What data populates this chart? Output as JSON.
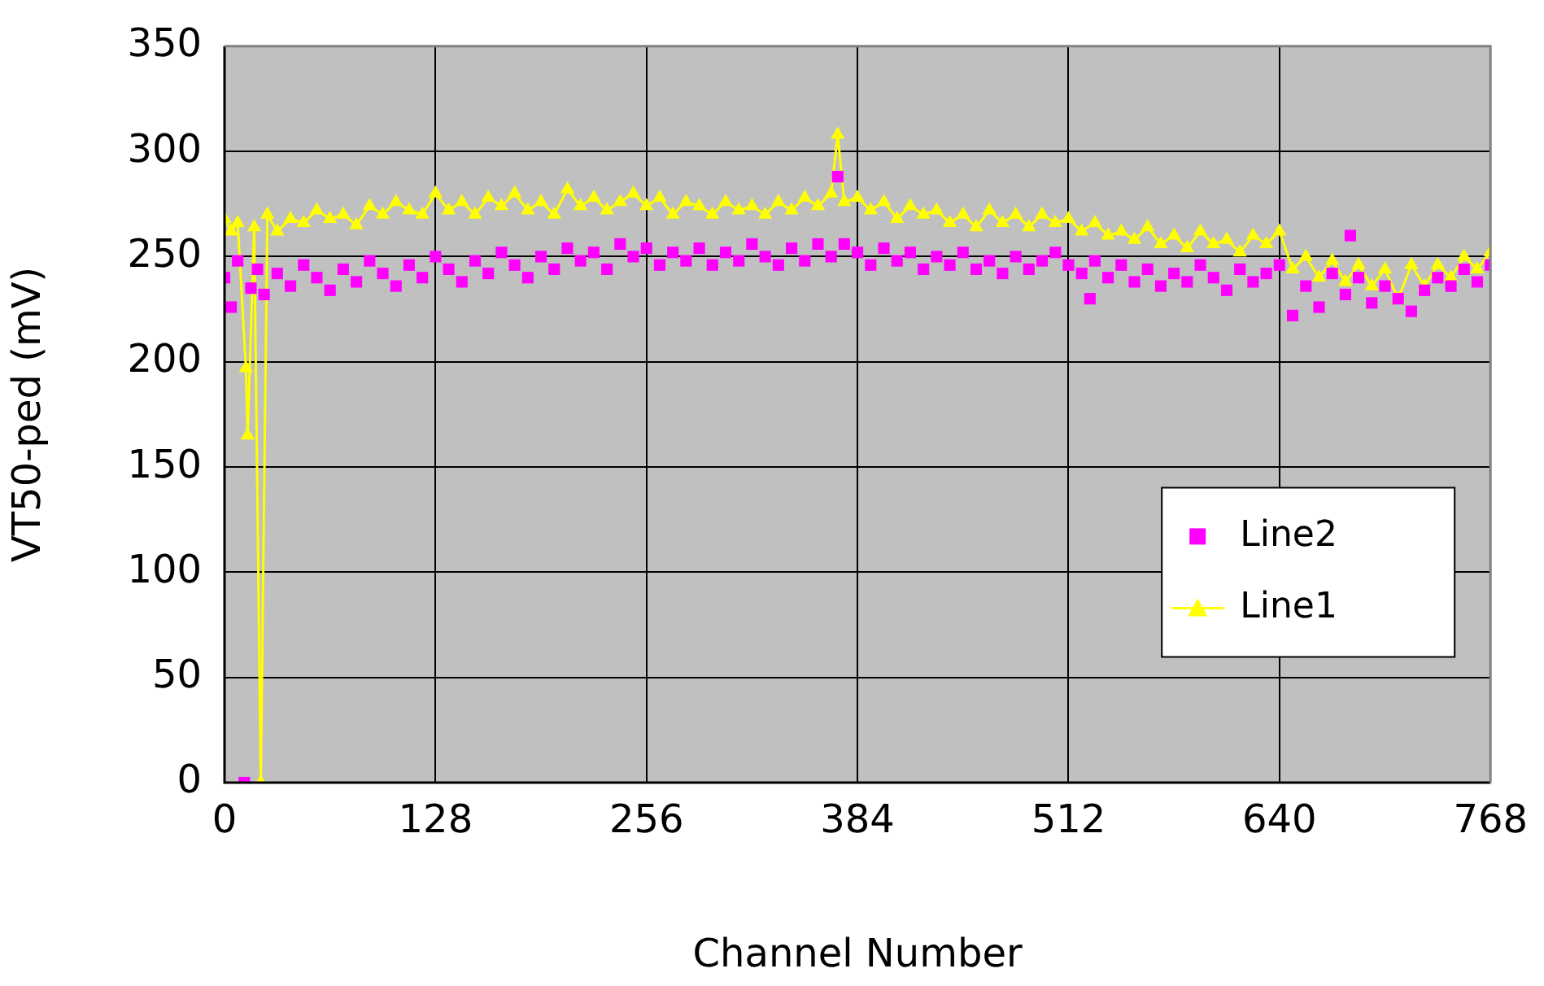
{
  "chart_data": {
    "type": "scatter",
    "xlabel": "Channel Number",
    "ylabel": "VT50-ped (mV)",
    "xlim": [
      0,
      768
    ],
    "xticks": [
      0,
      128,
      256,
      384,
      512,
      640,
      768
    ],
    "ylim": [
      0,
      350
    ],
    "yticks": [
      0,
      50,
      100,
      150,
      200,
      250,
      300,
      350
    ],
    "grid": true,
    "legend": "right",
    "series": [
      {
        "name": "Line2",
        "type": "scatter",
        "marker": "square",
        "color": "#ff00ff",
        "x": [
          0,
          4,
          8,
          12,
          16,
          20,
          24,
          32,
          40,
          48,
          56,
          64,
          72,
          80,
          88,
          96,
          104,
          112,
          120,
          128,
          136,
          144,
          152,
          160,
          168,
          176,
          184,
          192,
          200,
          208,
          216,
          224,
          232,
          240,
          248,
          256,
          264,
          272,
          280,
          288,
          296,
          304,
          312,
          320,
          328,
          336,
          344,
          352,
          360,
          368,
          372,
          376,
          384,
          392,
          400,
          408,
          416,
          424,
          432,
          440,
          448,
          456,
          464,
          472,
          480,
          488,
          496,
          504,
          512,
          520,
          525,
          528,
          536,
          544,
          552,
          560,
          568,
          576,
          584,
          592,
          600,
          608,
          616,
          624,
          632,
          640,
          648,
          656,
          664,
          672,
          680,
          683,
          688,
          696,
          704,
          712,
          720,
          728,
          736,
          744,
          752,
          760,
          768
        ],
        "values": [
          240,
          226,
          248,
          0,
          235,
          244,
          232,
          242,
          236,
          246,
          240,
          234,
          244,
          238,
          248,
          242,
          236,
          246,
          240,
          250,
          244,
          238,
          248,
          242,
          252,
          246,
          240,
          250,
          244,
          254,
          248,
          252,
          244,
          256,
          250,
          254,
          246,
          252,
          248,
          254,
          246,
          252,
          248,
          256,
          250,
          246,
          254,
          248,
          256,
          250,
          288,
          256,
          252,
          246,
          254,
          248,
          252,
          244,
          250,
          246,
          252,
          244,
          248,
          242,
          250,
          244,
          248,
          252,
          246,
          242,
          230,
          248,
          240,
          246,
          238,
          244,
          236,
          242,
          238,
          246,
          240,
          234,
          244,
          238,
          242,
          246,
          222,
          236,
          226,
          242,
          232,
          260,
          240,
          228,
          236,
          230,
          224,
          234,
          240,
          236,
          244,
          238,
          246
        ]
      },
      {
        "name": "Line1",
        "type": "line",
        "marker": "triangle",
        "color": "#ffff00",
        "x": [
          0,
          4,
          8,
          13,
          14,
          18,
          22,
          26,
          32,
          40,
          48,
          56,
          64,
          72,
          80,
          88,
          96,
          104,
          112,
          120,
          128,
          136,
          144,
          152,
          160,
          168,
          176,
          184,
          192,
          200,
          208,
          216,
          224,
          232,
          240,
          248,
          256,
          264,
          272,
          280,
          288,
          296,
          304,
          312,
          320,
          328,
          336,
          344,
          352,
          360,
          368,
          372,
          376,
          384,
          392,
          400,
          408,
          416,
          424,
          432,
          440,
          448,
          456,
          464,
          472,
          480,
          488,
          496,
          504,
          512,
          520,
          528,
          536,
          544,
          552,
          560,
          568,
          576,
          584,
          592,
          600,
          608,
          616,
          624,
          632,
          640,
          648,
          656,
          664,
          672,
          680,
          688,
          696,
          704,
          712,
          720,
          728,
          736,
          744,
          752,
          760,
          768
        ],
        "values": [
          268,
          262,
          266,
          197,
          165,
          264,
          0,
          270,
          262,
          268,
          266,
          272,
          268,
          270,
          265,
          274,
          270,
          276,
          272,
          270,
          280,
          272,
          276,
          270,
          278,
          274,
          280,
          272,
          276,
          270,
          282,
          274,
          278,
          272,
          276,
          280,
          274,
          278,
          270,
          276,
          274,
          270,
          276,
          272,
          274,
          270,
          276,
          272,
          278,
          274,
          280,
          308,
          276,
          278,
          272,
          276,
          268,
          274,
          270,
          272,
          266,
          270,
          264,
          272,
          266,
          270,
          264,
          270,
          266,
          268,
          262,
          266,
          260,
          262,
          258,
          264,
          256,
          260,
          254,
          262,
          256,
          258,
          252,
          260,
          256,
          262,
          244,
          250,
          240,
          248,
          238,
          246,
          236,
          244,
          230,
          246,
          236,
          246,
          240,
          250,
          244,
          252
        ]
      }
    ]
  }
}
